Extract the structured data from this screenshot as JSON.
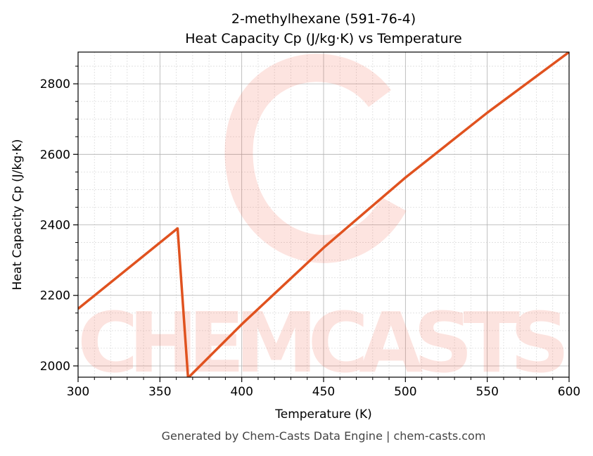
{
  "chart_data": {
    "type": "line",
    "title": "2-methylhexane (591-76-4)",
    "subtitle": "Heat Capacity Cp (J/kg·K) vs Temperature",
    "xlabel": "Temperature (K)",
    "ylabel": "Heat Capacity Cp (J/kg·K)",
    "xlim": [
      300,
      600
    ],
    "ylim": [
      1968,
      2890
    ],
    "xticks": [
      300,
      350,
      400,
      450,
      500,
      550,
      600
    ],
    "yticks": [
      2000,
      2200,
      2400,
      2600,
      2800
    ],
    "grid": true,
    "line_color": "#e0521f",
    "series": [
      {
        "x": [
          300,
          360.8,
          367.2,
          400,
          450,
          500,
          550,
          600
        ],
        "y": [
          2162,
          2390,
          1966,
          2118,
          2335,
          2534,
          2718,
          2890
        ]
      }
    ],
    "watermark": "CHEMCASTS",
    "footer": "Generated by Chem-Casts Data Engine | chem-casts.com"
  }
}
